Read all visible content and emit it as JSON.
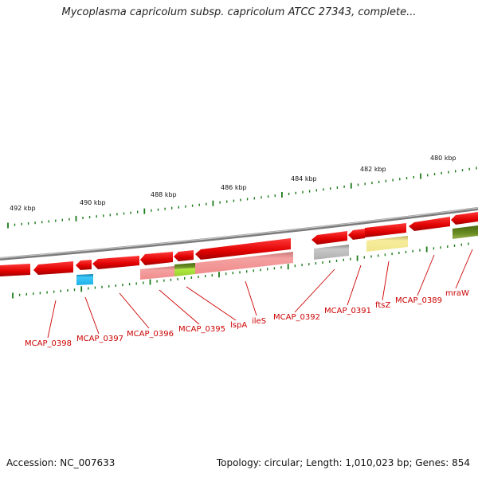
{
  "title": "Mycoplasma capricolum subsp. capricolum ATCC 27343, complete...",
  "footer": {
    "accession": "Accession: NC_007633",
    "stats": "Topology: circular; Length: 1,010,023 bp; Genes: 854"
  },
  "scale_labels": [
    {
      "id": "492",
      "text": "492 kbp"
    },
    {
      "id": "490",
      "text": "490 kbp"
    },
    {
      "id": "488",
      "text": "488 kbp"
    },
    {
      "id": "486",
      "text": "486 kbp"
    },
    {
      "id": "484",
      "text": "484 kbp"
    },
    {
      "id": "482",
      "text": "482 kbp"
    },
    {
      "id": "480",
      "text": "480 kbp"
    }
  ],
  "gene_labels": [
    {
      "id": "MCAP_0398",
      "text": "MCAP_0398"
    },
    {
      "id": "MCAP_0397",
      "text": "MCAP_0397"
    },
    {
      "id": "MCAP_0396",
      "text": "MCAP_0396"
    },
    {
      "id": "MCAP_0395",
      "text": "MCAP_0395"
    },
    {
      "id": "lspA",
      "text": "lspA"
    },
    {
      "id": "ileS",
      "text": "ileS"
    },
    {
      "id": "MCAP_0392",
      "text": "MCAP_0392"
    },
    {
      "id": "MCAP_0391",
      "text": "MCAP_0391"
    },
    {
      "id": "ftsZ",
      "text": "ftsZ"
    },
    {
      "id": "MCAP_0389",
      "text": "MCAP_0389"
    },
    {
      "id": "mraW",
      "text": "mraW"
    }
  ],
  "colors": {
    "gene_arrow": "#ee0000",
    "gene_arrow_dark": "#aa0000",
    "backbone": "#888888",
    "tick": "#1a7a1a",
    "label": "#cc0000",
    "cds_pink": "#f08c8c",
    "cds_grey": "#a8a8a8",
    "cds_yellow": "#f0e68c",
    "cds_cyan": "#1ab0e8",
    "cds_olive": "#6b8e23",
    "cds_lime": "#9acd32"
  }
}
